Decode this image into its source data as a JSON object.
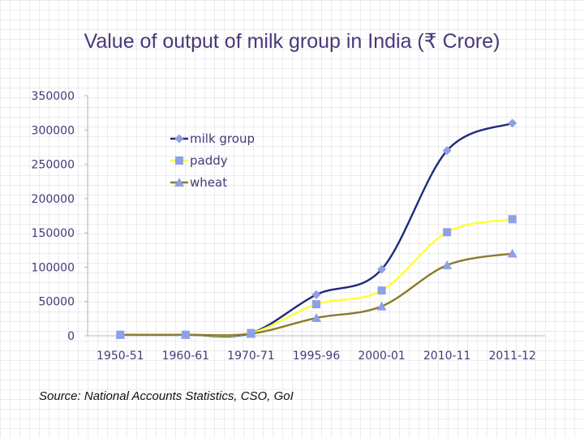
{
  "slide": {
    "title": "Value of output of milk group in India (₹ Crore)",
    "source": "Source: National Accounts Statistics, CSO, GoI"
  },
  "chart_data": {
    "type": "line",
    "title": "Value of output of milk group in India (₹ Crore)",
    "xlabel": "",
    "ylabel": "",
    "categories": [
      "1950-51",
      "1960-61",
      "1970-71",
      "1995-96",
      "2000-01",
      "2010-11",
      "2011-12"
    ],
    "yticks": [
      "0",
      "50000",
      "100000",
      "150000",
      "200000",
      "250000",
      "300000",
      "350000"
    ],
    "ylim": [
      0,
      350000
    ],
    "legend_position": "top-left",
    "grid": false,
    "series": [
      {
        "name": "milk group",
        "color": "#1f2a78",
        "marker": "diamond",
        "marker_color": "#8fa0e8",
        "values": [
          1500,
          1500,
          4000,
          60000,
          97000,
          270000,
          310000
        ]
      },
      {
        "name": "paddy",
        "color": "#ffff33",
        "marker": "square",
        "marker_color": "#8fa0e8",
        "values": [
          1500,
          1500,
          4000,
          46000,
          66000,
          151000,
          170000
        ]
      },
      {
        "name": "wheat",
        "color": "#8a7a2a",
        "marker": "triangle",
        "marker_color": "#8fa0e8",
        "values": [
          1500,
          1500,
          3000,
          26000,
          43000,
          103000,
          120000
        ]
      }
    ]
  }
}
